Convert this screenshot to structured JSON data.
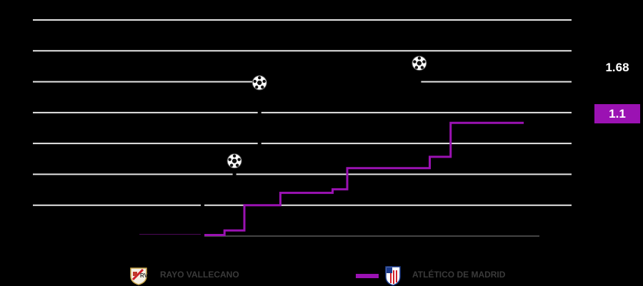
{
  "chart_data": {
    "type": "line",
    "step": true,
    "title": "",
    "xlabel": "",
    "ylabel": "",
    "xlim": [
      0,
      97
    ],
    "ylim": [
      0,
      2.1
    ],
    "grid": true,
    "gridlines_y": [
      0.3,
      0.6,
      0.9,
      1.2,
      1.5,
      1.8,
      2.1
    ],
    "legend_position": "bottom",
    "series": [
      {
        "name": "RAYO VALLECANO",
        "color": "#000000",
        "final_label": "1.68",
        "points": [
          [
            0,
            0
          ],
          [
            32.5,
            0
          ],
          [
            32.5,
            0.36
          ],
          [
            38.6,
            0.36
          ],
          [
            38.6,
            0.73
          ],
          [
            43.4,
            0.73
          ],
          [
            43.4,
            1.49
          ],
          [
            74,
            1.49
          ],
          [
            74,
            1.68
          ],
          [
            94,
            1.68
          ]
        ],
        "goals": [
          [
            38.6,
            0.73
          ],
          [
            43.4,
            1.49
          ],
          [
            74,
            1.68
          ]
        ]
      },
      {
        "name": "ATLÉTICO DE MADRID",
        "color": "#9b12b3",
        "final_label": "1.1",
        "points": [
          [
            0,
            0
          ],
          [
            20.6,
            0
          ],
          [
            20.6,
            0.01
          ],
          [
            36.7,
            0.01
          ],
          [
            36.7,
            0.055
          ],
          [
            40.5,
            0.055
          ],
          [
            40.5,
            0.3
          ],
          [
            47.4,
            0.3
          ],
          [
            47.4,
            0.42
          ],
          [
            57.4,
            0.42
          ],
          [
            57.4,
            0.455
          ],
          [
            60.2,
            0.455
          ],
          [
            60.2,
            0.66
          ],
          [
            76,
            0.66
          ],
          [
            76,
            0.77
          ],
          [
            80,
            0.77
          ],
          [
            80,
            1.1
          ],
          [
            94,
            1.1
          ]
        ],
        "goals": []
      }
    ]
  }
}
